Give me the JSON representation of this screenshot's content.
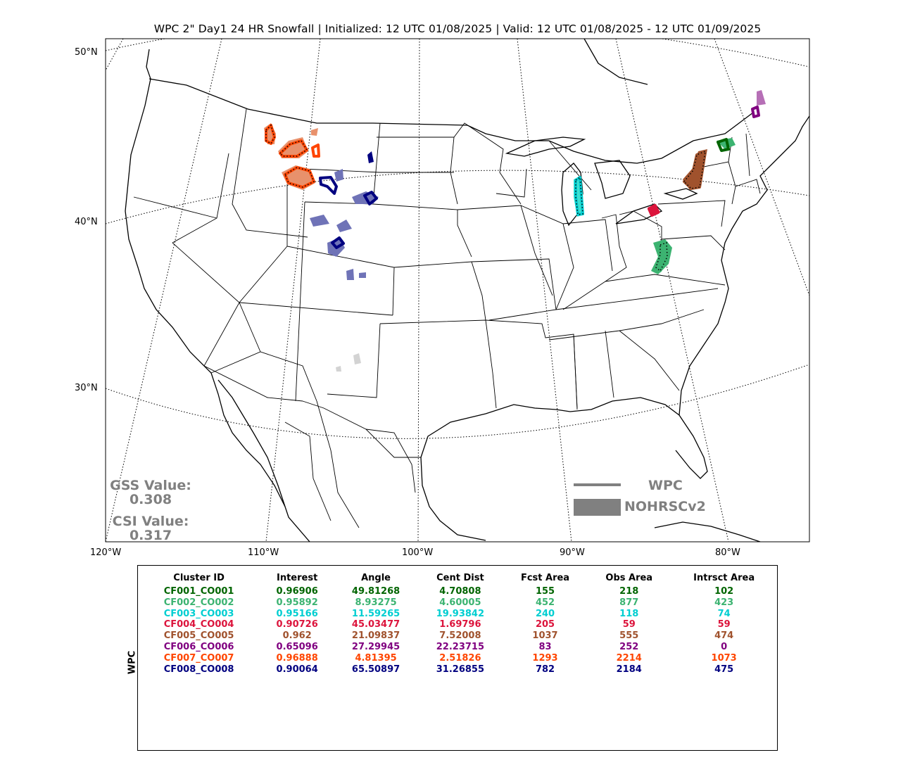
{
  "title": "WPC 2\" Day1 24 HR Snowfall | Initialized: 12 UTC 01/08/2025 | Valid: 12 UTC 01/08/2025 - 12 UTC 01/09/2025",
  "lat_labels": [
    "50°N",
    "40°N",
    "30°N"
  ],
  "lon_labels": [
    "120°W",
    "110°W",
    "100°W",
    "90°W",
    "80°W"
  ],
  "stats": {
    "gss_label": "GSS Value:",
    "gss_value": "0.308",
    "csi_label": "CSI Value:",
    "csi_value": "0.317"
  },
  "legend": {
    "line_label": "WPC",
    "fill_label": "NOHRSCv2",
    "color": "#808080"
  },
  "table": {
    "side_label": "WPC",
    "headers": [
      "Cluster ID",
      "Interest",
      "Angle",
      "Cent Dist",
      "Fcst Area",
      "Obs Area",
      "Intrsct Area"
    ],
    "rows": [
      {
        "color": "#006400",
        "cells": [
          "CF001_CO001",
          "0.96906",
          "49.81268",
          "4.70808",
          "155",
          "218",
          "102"
        ]
      },
      {
        "color": "#3cb371",
        "cells": [
          "CF002_CO002",
          "0.95892",
          "8.93275",
          "4.60005",
          "452",
          "877",
          "423"
        ]
      },
      {
        "color": "#00ced1",
        "cells": [
          "CF003_CO003",
          "0.95166",
          "11.59265",
          "19.93842",
          "240",
          "118",
          "74"
        ]
      },
      {
        "color": "#dc143c",
        "cells": [
          "CF004_CO004",
          "0.90726",
          "45.03477",
          "1.69796",
          "205",
          "59",
          "59"
        ]
      },
      {
        "color": "#a0522d",
        "cells": [
          "CF005_CO005",
          "0.962",
          "21.09837",
          "7.52008",
          "1037",
          "555",
          "474"
        ]
      },
      {
        "color": "#800080",
        "cells": [
          "CF006_CO006",
          "0.65096",
          "27.29945",
          "22.23715",
          "83",
          "252",
          "0"
        ]
      },
      {
        "color": "#ff4500",
        "cells": [
          "CF007_CO007",
          "0.96888",
          "4.81395",
          "2.51826",
          "1293",
          "2214",
          "1073"
        ]
      },
      {
        "color": "#000080",
        "cells": [
          "CF008_CO008",
          "0.90064",
          "65.50897",
          "31.26855",
          "782",
          "2184",
          "475"
        ]
      }
    ]
  },
  "colors": {
    "CF001": "#006400",
    "CF002": "#3cb371",
    "CF003": "#00ced1",
    "CF004": "#dc143c",
    "CF005": "#a0522d",
    "CF006": "#800080",
    "CF007": "#ff4500",
    "CF008": "#000080",
    "unmatched": "#d3d3d3"
  }
}
